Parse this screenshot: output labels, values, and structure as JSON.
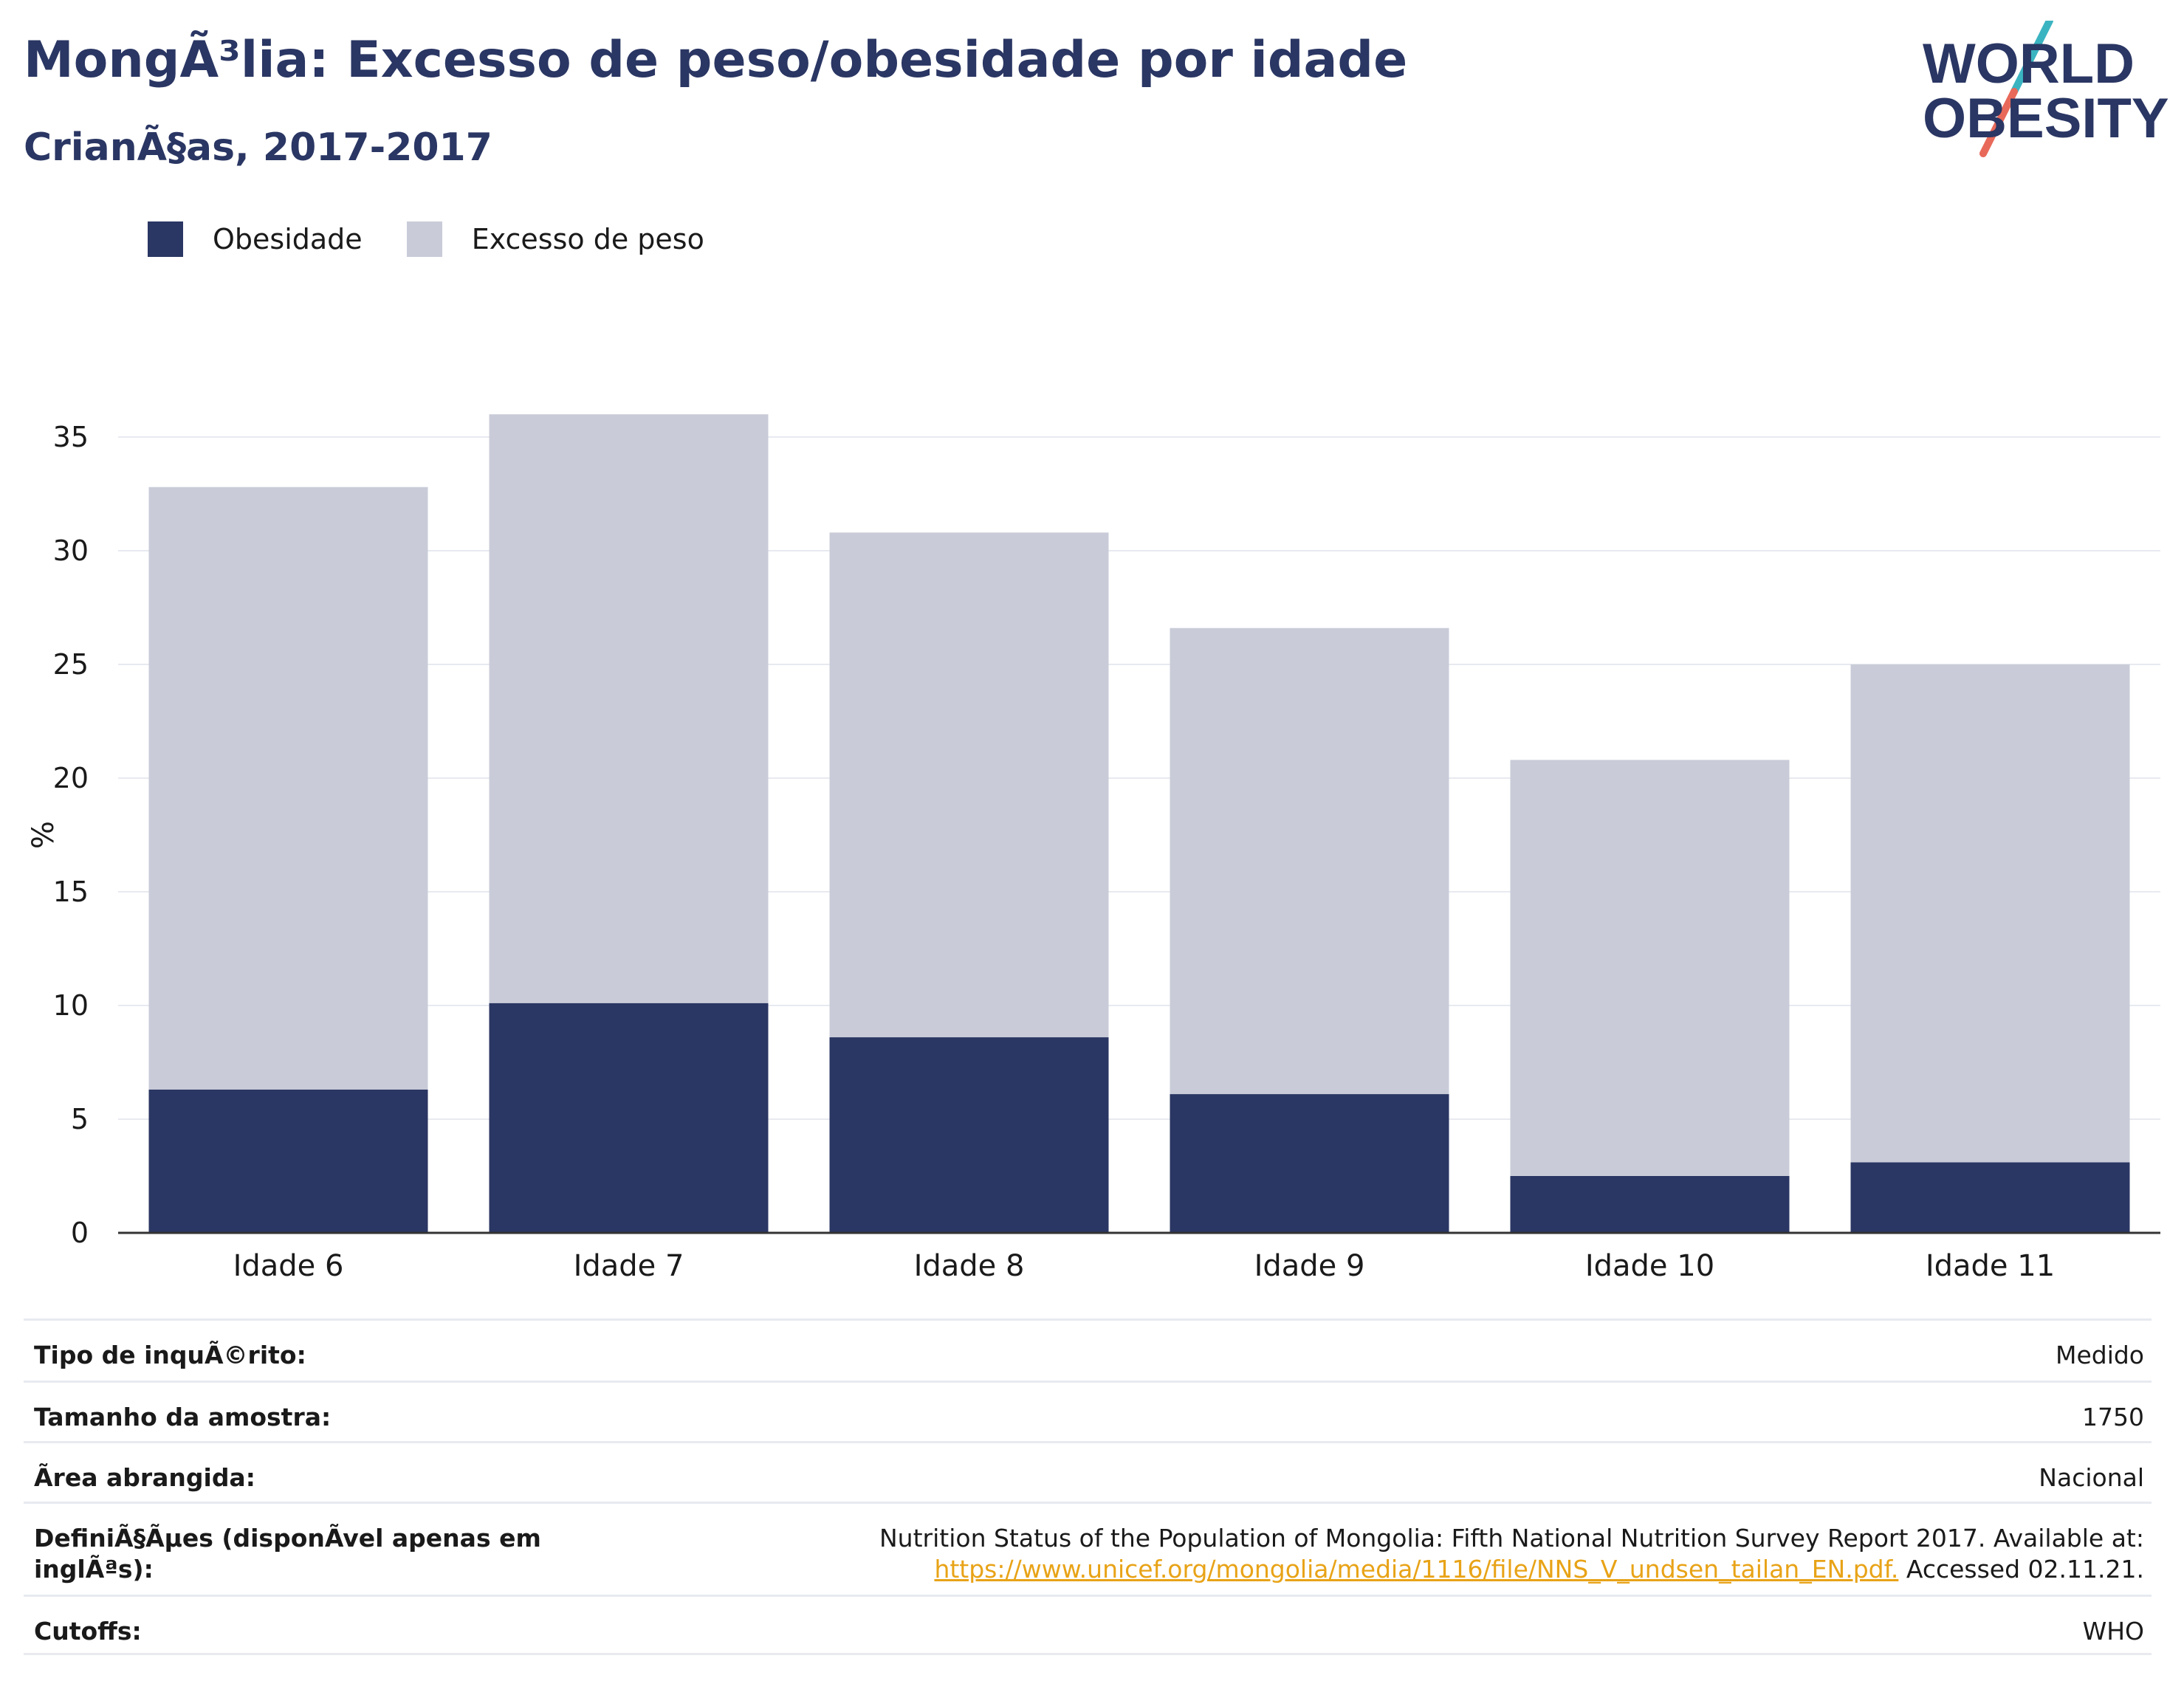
{
  "header": {
    "title": "MongÃ³lia: Excesso de peso/obesidade por idade",
    "subtitle": "CrianÃ§as, 2017-2017"
  },
  "logo": {
    "line1": "WORLD",
    "line2": "OBESITY",
    "text_color": "#2a3663",
    "slash_color_top": "#3bb4c1",
    "slash_color_bottom": "#e8695a"
  },
  "colors": {
    "obesity": "#2a3663",
    "overweight": "#c9ccd8",
    "axis": "#333333",
    "grid": "#e8eaf0"
  },
  "chart_data": {
    "type": "bar",
    "stacking": "overlay",
    "categories": [
      "Idade 6",
      "Idade 7",
      "Idade 8",
      "Idade 9",
      "Idade 10",
      "Idade 11"
    ],
    "series": [
      {
        "name": "Obesidade",
        "values": [
          6.3,
          10.1,
          8.6,
          6.1,
          2.5,
          3.1
        ]
      },
      {
        "name": "Excesso de peso",
        "values": [
          32.8,
          36.0,
          30.8,
          26.6,
          20.8,
          25.0
        ]
      }
    ],
    "ylabel": "%",
    "ylim": [
      0,
      36
    ],
    "yticks": [
      0,
      5,
      10,
      15,
      20,
      25,
      30,
      35
    ],
    "grid": true,
    "legend_position": "top-left"
  },
  "info": [
    {
      "label": "Tipo de inquÃ©rito:",
      "value": "Medido"
    },
    {
      "label": "Tamanho da amostra:",
      "value": "1750"
    },
    {
      "label": "Ãrea abrangida:",
      "value": "Nacional"
    },
    {
      "label": "DefiniÃ§Ãµes (disponÃvel apenas em inglÃªs):",
      "value_line1": "Nutrition Status of the Population of Mongolia: Fifth National Nutrition Survey Report 2017. Available at:",
      "value_link": "https://www.unicef.org/mongolia/media/1116/file/NNS_V_undsen_tailan_EN.pdf.",
      "value_suffix": " Accessed 02.11.21."
    },
    {
      "label": "Cutoffs:",
      "value": "WHO"
    }
  ]
}
